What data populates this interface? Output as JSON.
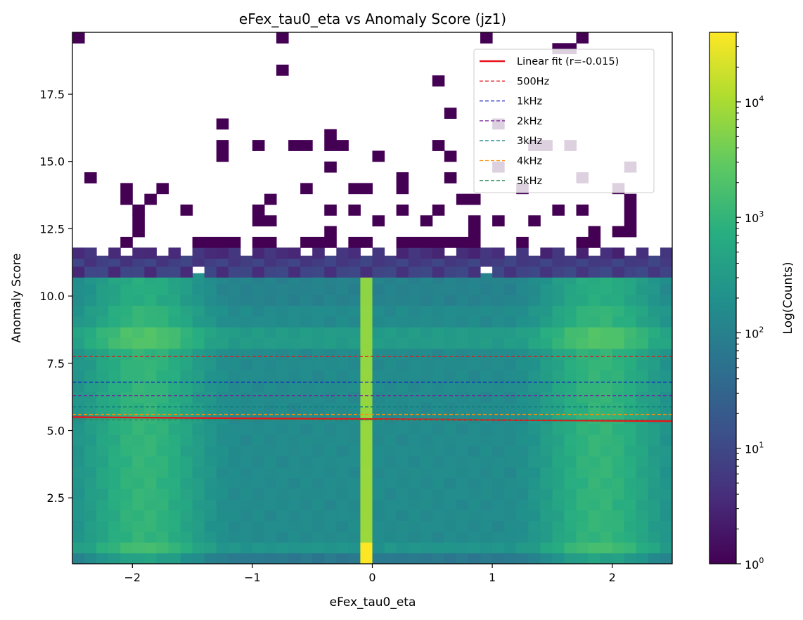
{
  "chart_data": {
    "type": "heatmap",
    "title": "eFex_tau0_eta vs Anomaly Score (jz1)",
    "xlabel": "eFex_tau0_eta",
    "ylabel": "Anomaly Score",
    "colorbar_label": "Log(Counts)",
    "colormap": "viridis",
    "color_scale": "log",
    "color_range": [
      1,
      40000
    ],
    "xlim": [
      -2.5,
      2.5
    ],
    "ylim": [
      0.05,
      19.8
    ],
    "x_bins": 50,
    "y_bin_width": 0.4,
    "x_ticks": [
      -2,
      -1,
      0,
      1,
      2
    ],
    "x_tick_labels": [
      "−2",
      "−1",
      "0",
      "1",
      "2"
    ],
    "y_ticks": [
      2.5,
      5.0,
      7.5,
      10.0,
      12.5,
      15.0,
      17.5
    ],
    "y_tick_labels": [
      "2.5",
      "5.0",
      "7.5",
      "10.0",
      "12.5",
      "15.0",
      "17.5"
    ],
    "colorbar_ticks": [
      {
        "value": 1,
        "base": "10",
        "exp": "0"
      },
      {
        "value": 10,
        "base": "10",
        "exp": "1"
      },
      {
        "value": 100,
        "base": "10",
        "exp": "2"
      },
      {
        "value": 1000,
        "base": "10",
        "exp": "3"
      },
      {
        "value": 10000,
        "base": "10",
        "exp": "4"
      }
    ],
    "dense_region": {
      "y_range": [
        0.05,
        10.65
      ],
      "typical_counts": [
        150,
        1000
      ],
      "peak_column_x": -0.05,
      "peak_column_counts": 8000
    },
    "sparse_rows": [
      {
        "y_center": 10.9,
        "typical_counts": 8
      },
      {
        "y_center": 11.3,
        "typical_counts": 7
      },
      {
        "y_center": 11.6,
        "typical_counts": 4
      }
    ],
    "outlier_cells": [
      [
        -2.45,
        19.6
      ],
      [
        -0.75,
        19.6
      ],
      [
        0.95,
        19.6
      ],
      [
        1.75,
        19.6
      ],
      [
        -0.75,
        18.4
      ],
      [
        1.55,
        19.2
      ],
      [
        1.65,
        19.2
      ],
      [
        0.55,
        18.0
      ],
      [
        0.65,
        16.8
      ],
      [
        -1.25,
        16.4
      ],
      [
        1.05,
        16.4
      ],
      [
        -0.35,
        16.0
      ],
      [
        -1.25,
        15.6
      ],
      [
        -0.95,
        15.6
      ],
      [
        -0.65,
        15.6
      ],
      [
        -0.55,
        15.6
      ],
      [
        -0.35,
        15.6
      ],
      [
        -0.25,
        15.6
      ],
      [
        0.55,
        15.6
      ],
      [
        -1.25,
        15.2
      ],
      [
        0.05,
        15.2
      ],
      [
        0.65,
        15.2
      ],
      [
        1.35,
        15.6
      ],
      [
        1.45,
        15.6
      ],
      [
        1.65,
        15.6
      ],
      [
        -0.35,
        14.8
      ],
      [
        1.05,
        14.8
      ],
      [
        2.15,
        14.8
      ],
      [
        -2.35,
        14.4
      ],
      [
        0.25,
        14.4
      ],
      [
        0.65,
        14.4
      ],
      [
        1.75,
        14.4
      ],
      [
        -2.05,
        14.0
      ],
      [
        -1.75,
        14.0
      ],
      [
        -0.55,
        14.0
      ],
      [
        -0.15,
        14.0
      ],
      [
        -0.05,
        14.0
      ],
      [
        0.25,
        14.0
      ],
      [
        1.25,
        14.0
      ],
      [
        2.05,
        14.0
      ],
      [
        -2.05,
        13.6
      ],
      [
        -1.85,
        13.6
      ],
      [
        -0.85,
        13.6
      ],
      [
        0.75,
        13.6
      ],
      [
        0.85,
        13.6
      ],
      [
        2.15,
        13.6
      ],
      [
        -1.95,
        13.2
      ],
      [
        -1.55,
        13.2
      ],
      [
        -0.95,
        13.2
      ],
      [
        -0.35,
        13.2
      ],
      [
        -0.15,
        13.2
      ],
      [
        0.25,
        13.2
      ],
      [
        0.55,
        13.2
      ],
      [
        1.55,
        13.2
      ],
      [
        1.75,
        13.2
      ],
      [
        2.15,
        13.2
      ],
      [
        -1.95,
        12.8
      ],
      [
        -0.95,
        12.8
      ],
      [
        -0.85,
        12.8
      ],
      [
        0.05,
        12.8
      ],
      [
        0.45,
        12.8
      ],
      [
        0.85,
        12.8
      ],
      [
        1.05,
        12.8
      ],
      [
        1.35,
        12.8
      ],
      [
        2.15,
        12.8
      ],
      [
        -1.95,
        12.4
      ],
      [
        -0.35,
        12.4
      ],
      [
        0.85,
        12.4
      ],
      [
        1.85,
        12.4
      ],
      [
        2.05,
        12.4
      ],
      [
        2.15,
        12.4
      ],
      [
        -2.05,
        12.0
      ],
      [
        -1.45,
        12.0
      ],
      [
        -1.35,
        12.0
      ],
      [
        -1.25,
        12.0
      ],
      [
        -1.15,
        12.0
      ],
      [
        -0.95,
        12.0
      ],
      [
        -0.85,
        12.0
      ],
      [
        -0.55,
        12.0
      ],
      [
        -0.45,
        12.0
      ],
      [
        -0.35,
        12.0
      ],
      [
        -0.15,
        12.0
      ],
      [
        -0.05,
        12.0
      ],
      [
        0.25,
        12.0
      ],
      [
        0.35,
        12.0
      ],
      [
        0.45,
        12.0
      ],
      [
        0.55,
        12.0
      ],
      [
        0.65,
        12.0
      ],
      [
        0.75,
        12.0
      ],
      [
        0.85,
        12.0
      ],
      [
        1.25,
        12.0
      ],
      [
        1.75,
        12.0
      ],
      [
        1.85,
        12.0
      ]
    ],
    "series": [
      {
        "name": "Linear fit (r=-0.015)",
        "kind": "fit",
        "x": [
          -2.5,
          2.5
        ],
        "y": [
          5.5,
          5.35
        ],
        "color": "#e8141c"
      },
      {
        "name": "500Hz",
        "kind": "threshold",
        "y": 7.75,
        "color": "#e8141c"
      },
      {
        "name": "1kHz",
        "kind": "threshold",
        "y": 6.8,
        "color": "#1616c8"
      },
      {
        "name": "2kHz",
        "kind": "threshold",
        "y": 6.3,
        "color": "#7a1f9c"
      },
      {
        "name": "3kHz",
        "kind": "threshold",
        "y": 5.88,
        "color": "#0f7f7f"
      },
      {
        "name": "4kHz",
        "kind": "threshold",
        "y": 5.6,
        "color": "#ff8c00"
      },
      {
        "name": "5kHz",
        "kind": "threshold",
        "y": 5.4,
        "color": "#2e8b57"
      }
    ],
    "legend_position": "upper right"
  }
}
